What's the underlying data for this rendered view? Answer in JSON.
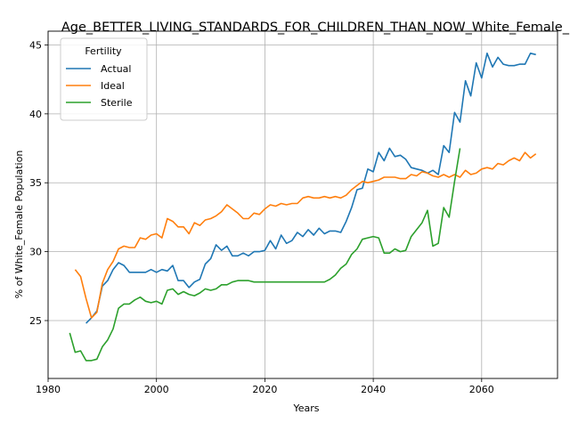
{
  "chart_data": {
    "type": "line",
    "title": "Age_BETTER_LIVING_STANDARDS_FOR_CHILDREN_THAN_NOW_White_Female_Population",
    "xlabel": "Years",
    "ylabel": "% of White_Female Population",
    "xlim": [
      1980,
      2074
    ],
    "ylim": [
      20.8,
      46.0
    ],
    "xticks": [
      1980,
      2000,
      2020,
      2040,
      2060
    ],
    "yticks": [
      25,
      30,
      35,
      40,
      45
    ],
    "grid": true,
    "legend": {
      "title": "Fertility",
      "position": "top-left"
    },
    "series": [
      {
        "name": "Actual",
        "color": "#1f77b4",
        "x": [
          1987,
          1988,
          1989,
          1990,
          1991,
          1992,
          1993,
          1994,
          1995,
          1996,
          1997,
          1998,
          1999,
          2000,
          2001,
          2002,
          2003,
          2004,
          2005,
          2006,
          2007,
          2008,
          2009,
          2010,
          2011,
          2012,
          2013,
          2014,
          2015,
          2016,
          2017,
          2018,
          2019,
          2020,
          2021,
          2022,
          2023,
          2024,
          2025,
          2026,
          2027,
          2028,
          2029,
          2030,
          2031,
          2032,
          2033,
          2034,
          2035,
          2036,
          2037,
          2038,
          2039,
          2040,
          2041,
          2042,
          2043,
          2044,
          2045,
          2046,
          2047,
          2048,
          2049,
          2050,
          2051,
          2052,
          2053,
          2054,
          2055,
          2056,
          2057,
          2058,
          2059,
          2060,
          2061,
          2062,
          2063,
          2064,
          2065,
          2066,
          2067,
          2068,
          2069,
          2070
        ],
        "values": [
          24.8,
          25.2,
          25.7,
          27.5,
          27.9,
          28.7,
          29.2,
          29.0,
          28.5,
          28.5,
          28.5,
          28.5,
          28.7,
          28.5,
          28.7,
          28.6,
          29.0,
          27.9,
          27.9,
          27.4,
          27.8,
          28.0,
          29.1,
          29.5,
          30.5,
          30.1,
          30.4,
          29.7,
          29.7,
          29.9,
          29.7,
          30.0,
          30.0,
          30.1,
          30.8,
          30.2,
          31.2,
          30.6,
          30.8,
          31.4,
          31.1,
          31.6,
          31.2,
          31.7,
          31.3,
          31.5,
          31.5,
          31.4,
          32.2,
          33.2,
          34.5,
          34.6,
          36.0,
          35.8,
          37.2,
          36.6,
          37.5,
          36.9,
          37.0,
          36.7,
          36.1,
          36.0,
          35.9,
          35.7,
          35.9,
          35.6,
          37.7,
          37.2,
          40.1,
          39.4,
          42.4,
          41.3,
          43.7,
          42.6,
          44.4,
          43.4,
          44.1,
          43.6,
          43.5,
          43.5,
          43.6,
          43.6,
          44.4,
          44.3
        ]
      },
      {
        "name": "Ideal",
        "color": "#ff7f0e",
        "x": [
          1985,
          1986,
          1987,
          1988,
          1989,
          1990,
          1991,
          1992,
          1993,
          1994,
          1995,
          1996,
          1997,
          1998,
          1999,
          2000,
          2001,
          2002,
          2003,
          2004,
          2005,
          2006,
          2007,
          2008,
          2009,
          2010,
          2011,
          2012,
          2013,
          2014,
          2015,
          2016,
          2017,
          2018,
          2019,
          2020,
          2021,
          2022,
          2023,
          2024,
          2025,
          2026,
          2027,
          2028,
          2029,
          2030,
          2031,
          2032,
          2033,
          2034,
          2035,
          2036,
          2037,
          2038,
          2039,
          2040,
          2041,
          2042,
          2043,
          2044,
          2045,
          2046,
          2047,
          2048,
          2049,
          2050,
          2051,
          2052,
          2053,
          2054,
          2055,
          2056,
          2057,
          2058,
          2059,
          2060,
          2061,
          2062,
          2063,
          2064,
          2065,
          2066,
          2067,
          2068,
          2069,
          2070
        ],
        "values": [
          28.7,
          28.2,
          26.6,
          25.2,
          25.6,
          27.7,
          28.7,
          29.3,
          30.2,
          30.4,
          30.3,
          30.3,
          31.0,
          30.9,
          31.2,
          31.3,
          31.0,
          32.4,
          32.2,
          31.8,
          31.8,
          31.3,
          32.1,
          31.9,
          32.3,
          32.4,
          32.6,
          32.9,
          33.4,
          33.1,
          32.8,
          32.4,
          32.4,
          32.8,
          32.7,
          33.1,
          33.4,
          33.3,
          33.5,
          33.4,
          33.5,
          33.5,
          33.9,
          34.0,
          33.9,
          33.9,
          34.0,
          33.9,
          34.0,
          33.9,
          34.1,
          34.5,
          34.8,
          35.1,
          35.0,
          35.1,
          35.2,
          35.4,
          35.4,
          35.4,
          35.3,
          35.3,
          35.6,
          35.5,
          35.8,
          35.7,
          35.5,
          35.4,
          35.6,
          35.4,
          35.6,
          35.4,
          35.9,
          35.6,
          35.7,
          36.0,
          36.1,
          36.0,
          36.4,
          36.3,
          36.6,
          36.8,
          36.6,
          37.2,
          36.8,
          37.1
        ]
      },
      {
        "name": "Sterile",
        "color": "#2ca02c",
        "x": [
          1984,
          1985,
          1986,
          1987,
          1988,
          1989,
          1990,
          1991,
          1992,
          1993,
          1994,
          1995,
          1996,
          1997,
          1998,
          1999,
          2000,
          2001,
          2002,
          2003,
          2004,
          2005,
          2006,
          2007,
          2008,
          2009,
          2010,
          2011,
          2012,
          2013,
          2014,
          2015,
          2016,
          2017,
          2018,
          2019,
          2020,
          2021,
          2022,
          2023,
          2024,
          2025,
          2026,
          2027,
          2028,
          2029,
          2030,
          2031,
          2032,
          2033,
          2034,
          2035,
          2036,
          2037,
          2038,
          2039,
          2040,
          2041,
          2042,
          2043,
          2044,
          2045,
          2046,
          2047,
          2048,
          2049,
          2050,
          2051,
          2052,
          2053,
          2054,
          2055,
          2056
        ],
        "values": [
          24.1,
          22.7,
          22.8,
          22.1,
          22.1,
          22.2,
          23.1,
          23.6,
          24.4,
          25.9,
          26.2,
          26.2,
          26.5,
          26.7,
          26.4,
          26.3,
          26.4,
          26.2,
          27.2,
          27.3,
          26.9,
          27.1,
          26.9,
          26.8,
          27.0,
          27.3,
          27.2,
          27.3,
          27.6,
          27.6,
          27.8,
          27.9,
          27.9,
          27.9,
          27.8,
          27.8,
          27.8,
          27.8,
          27.8,
          27.8,
          27.8,
          27.8,
          27.8,
          27.8,
          27.8,
          27.8,
          27.8,
          27.8,
          28.0,
          28.3,
          28.8,
          29.1,
          29.8,
          30.2,
          30.9,
          31.0,
          31.1,
          31.0,
          29.9,
          29.9,
          30.2,
          30.0,
          30.1,
          31.1,
          31.6,
          32.1,
          33.0,
          30.4,
          30.6,
          33.2,
          32.5,
          35.1,
          37.5
        ]
      }
    ]
  }
}
